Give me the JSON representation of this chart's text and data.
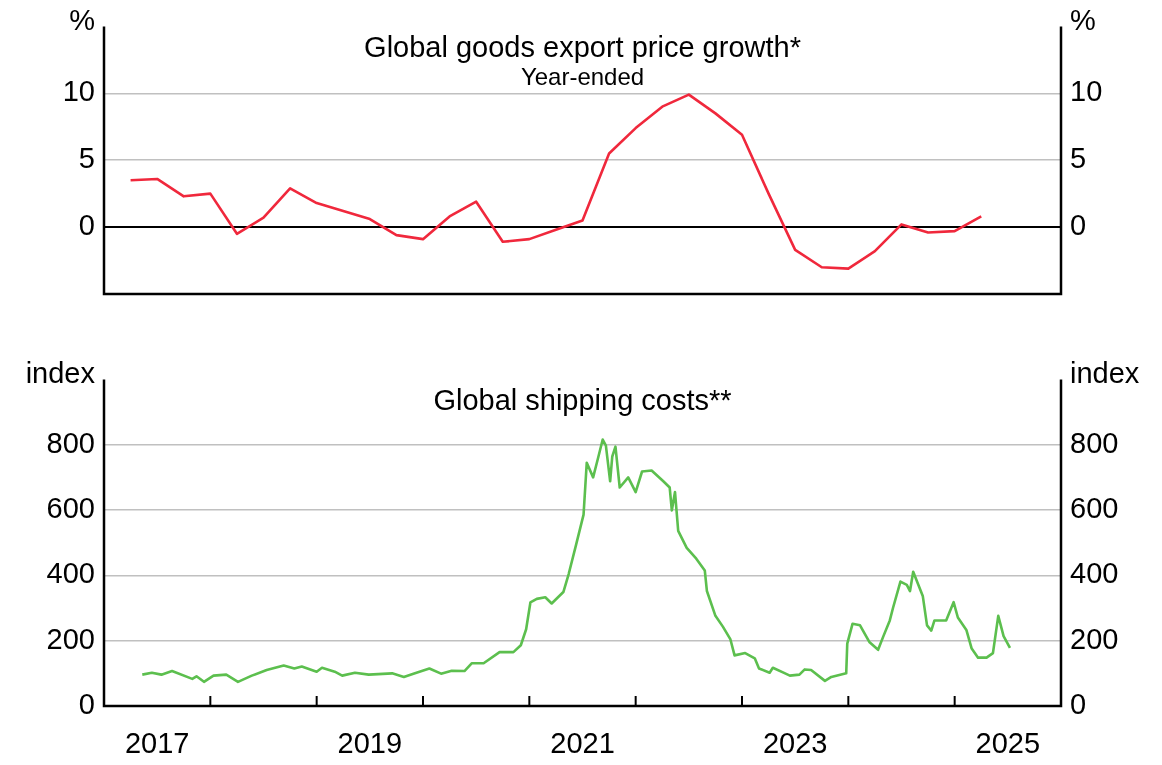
{
  "chart_data": [
    {
      "type": "line",
      "title": "Global goods export price growth*",
      "subtitle": "Year-ended",
      "ylabel": "%",
      "y2label": "%",
      "color": "#f0283c",
      "x": [
        2017.25,
        2017.5,
        2017.75,
        2018,
        2018.25,
        2018.5,
        2018.75,
        2019,
        2019.25,
        2019.5,
        2019.75,
        2020,
        2020.25,
        2020.5,
        2020.75,
        2021,
        2021.25,
        2021.5,
        2021.75,
        2022,
        2022.25,
        2022.5,
        2022.75,
        2023,
        2023.25,
        2023.5,
        2023.75,
        2024,
        2024.25,
        2024.5,
        2024.75,
        2025,
        2025.25
      ],
      "values": [
        3.5,
        3.6,
        2.3,
        2.5,
        -0.5,
        0.7,
        2.9,
        1.8,
        1.2,
        0.6,
        -0.6,
        -0.9,
        0.8,
        1.9,
        -1.1,
        -0.9,
        -0.2,
        0.5,
        5.5,
        7.4,
        9.0,
        9.9,
        8.5,
        6.9,
        2.5,
        -1.7,
        -3.0,
        -3.1,
        -1.8,
        0.2,
        -0.4,
        -0.3,
        0.8
      ],
      "xlim": [
        2017,
        2026
      ],
      "ylim": [
        -5,
        15
      ],
      "yticks": [
        0,
        5,
        10
      ],
      "y2lim": [
        -5,
        15
      ],
      "y2ticks": [
        0,
        5,
        10
      ],
      "grid": "y",
      "tick_labels": "y",
      "ref_lines": [
        {
          "axis": "y",
          "value": 0,
          "color": "#000000"
        }
      ]
    },
    {
      "type": "line",
      "title": "Global shipping costs**",
      "ylabel": "index",
      "y2label": "index",
      "color": "#5cbf4e",
      "x": [
        2017.36,
        2017.45,
        2017.54,
        2017.64,
        2017.83,
        2017.87,
        2017.94,
        2018.03,
        2018.15,
        2018.26,
        2018.39,
        2018.53,
        2018.69,
        2018.79,
        2018.86,
        2019.0,
        2019.05,
        2019.17,
        2019.24,
        2019.36,
        2019.49,
        2019.71,
        2019.82,
        2019.91,
        2020.06,
        2020.17,
        2020.27,
        2020.39,
        2020.46,
        2020.57,
        2020.72,
        2020.85,
        2020.92,
        2020.97,
        2021.01,
        2021.07,
        2021.15,
        2021.21,
        2021.32,
        2021.37,
        2021.44,
        2021.51,
        2021.54,
        2021.6,
        2021.65,
        2021.69,
        2021.72,
        2021.76,
        2021.78,
        2021.81,
        2021.85,
        2021.93,
        2022.0,
        2022.06,
        2022.15,
        2022.26,
        2022.32,
        2022.34,
        2022.37,
        2022.4,
        2022.48,
        2022.57,
        2022.65,
        2022.67,
        2022.75,
        2022.82,
        2022.89,
        2022.93,
        2023.03,
        2023.12,
        2023.16,
        2023.26,
        2023.29,
        2023.39,
        2023.45,
        2023.54,
        2023.59,
        2023.65,
        2023.78,
        2023.84,
        2023.98,
        2023.99,
        2024.04,
        2024.11,
        2024.2,
        2024.28,
        2024.33,
        2024.39,
        2024.42,
        2024.49,
        2024.55,
        2024.58,
        2024.61,
        2024.7,
        2024.74,
        2024.78,
        2024.81,
        2024.92,
        2024.99,
        2025.03,
        2025.11,
        2025.16,
        2025.22,
        2025.3,
        2025.36,
        2025.41,
        2025.46,
        2025.52
      ],
      "values": [
        96,
        102,
        96,
        107,
        83,
        91,
        74,
        93,
        96,
        74,
        93,
        110,
        124,
        115,
        121,
        105,
        117,
        105,
        93,
        102,
        96,
        100,
        89,
        99,
        115,
        99,
        108,
        107,
        131,
        131,
        165,
        165,
        186,
        235,
        317,
        328,
        333,
        314,
        349,
        404,
        494,
        586,
        745,
        700,
        764,
        816,
        797,
        688,
        764,
        794,
        669,
        700,
        655,
        718,
        721,
        688,
        669,
        599,
        655,
        536,
        484,
        451,
        415,
        352,
        276,
        243,
        205,
        155,
        162,
        146,
        115,
        102,
        117,
        102,
        93,
        96,
        112,
        110,
        77,
        89,
        100,
        191,
        252,
        247,
        195,
        172,
        214,
        262,
        300,
        381,
        371,
        352,
        411,
        337,
        247,
        231,
        262,
        262,
        318,
        271,
        233,
        176,
        148,
        148,
        162,
        276,
        214,
        178
      ],
      "xlim": [
        2017,
        2026
      ],
      "ylim": [
        0,
        1000
      ],
      "yticks": [
        0,
        200,
        400,
        600,
        800
      ],
      "y2lim": [
        0,
        1000
      ],
      "y2ticks": [
        0,
        200,
        400,
        600,
        800
      ],
      "grid": "y",
      "xticks": [
        {
          "value": 2017.5,
          "label": "2017"
        },
        {
          "value": 2018,
          "label": null
        },
        {
          "value": 2019,
          "label": null
        },
        {
          "value": 2019.5,
          "label": "2019"
        },
        {
          "value": 2020,
          "label": null
        },
        {
          "value": 2021,
          "label": null
        },
        {
          "value": 2021.5,
          "label": "2021"
        },
        {
          "value": 2022,
          "label": null
        },
        {
          "value": 2023,
          "label": null
        },
        {
          "value": 2023.5,
          "label": "2023"
        },
        {
          "value": 2024,
          "label": null
        },
        {
          "value": 2025,
          "label": null
        },
        {
          "value": 2025.5,
          "label": "2025"
        }
      ]
    }
  ]
}
